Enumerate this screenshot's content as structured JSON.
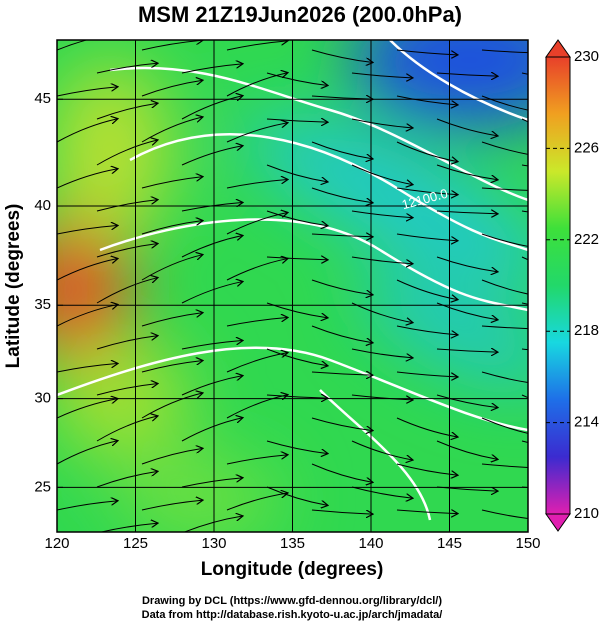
{
  "chart_data": {
    "type": "map",
    "title": "MSM 21Z19Jun2026 (200.0hPa)",
    "xlabel": "Longitude (degrees)",
    "ylabel": "Latitude  (degrees)",
    "xlim": [
      120,
      150
    ],
    "xticks": [
      120,
      125,
      130,
      135,
      140,
      145,
      150
    ],
    "ylim": [
      22.4,
      47.6
    ],
    "yticks": [
      25,
      30,
      35,
      40,
      45
    ],
    "y_scale": "mercator",
    "grid": true,
    "colorbar": {
      "lim": [
        210,
        230
      ],
      "ticks": [
        210,
        214,
        218,
        222,
        226,
        230
      ],
      "colors": [
        "#e01fb0",
        "#3b2bd0",
        "#1e6fe8",
        "#18d8e0",
        "#22d86a",
        "#3ee03a",
        "#cbe82a",
        "#f0a020",
        "#e8402a"
      ]
    },
    "contour_labels": [
      "12100.0"
    ],
    "credits": [
      "Drawing by DCL (https://www.gfd-dennou.org/library/dcl/)",
      "Data from http://database.rish.kyoto-u.ac.jp/arch/jmadata/"
    ]
  }
}
